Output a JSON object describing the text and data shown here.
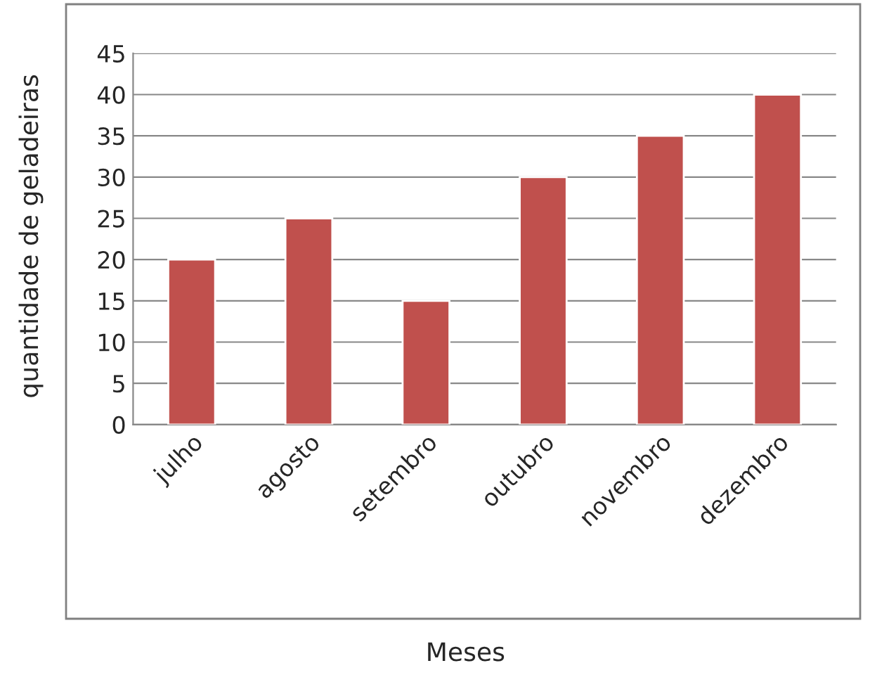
{
  "chart_data": {
    "type": "bar",
    "xlabel": "Meses",
    "ylabel": "quantidade de geladeiras",
    "categories": [
      "julho",
      "agosto",
      "setembro",
      "outubro",
      "novembro",
      "dezembro"
    ],
    "values": [
      20,
      25,
      15,
      30,
      35,
      40
    ],
    "color": "#c0504d",
    "ylim": [
      0,
      45
    ],
    "yticks": [
      0,
      5,
      10,
      15,
      20,
      25,
      30,
      35,
      40,
      45
    ],
    "grid": "y"
  }
}
